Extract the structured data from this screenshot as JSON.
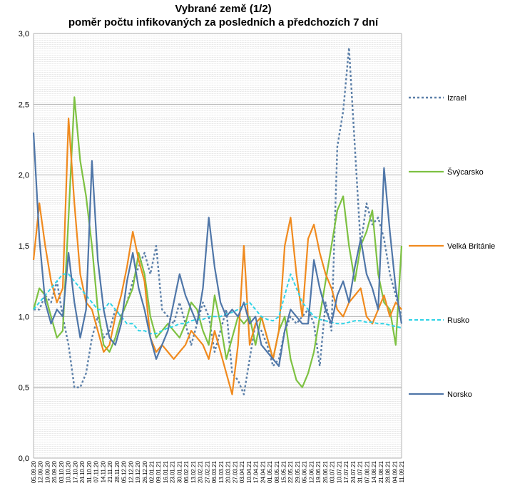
{
  "chart_data": {
    "type": "line",
    "title": "Vybrané země (1/2)",
    "subtitle": "poměr počtu infikovaných za posledních a předchozích 7 dní",
    "xlabel": "",
    "ylabel": "",
    "ylim": [
      0,
      3
    ],
    "y_ticks": [
      "0,0",
      "0,5",
      "1,0",
      "1,5",
      "2,0",
      "2,5",
      "3,0"
    ],
    "x_tick_labels": [
      "05.09.20",
      "12.09.20",
      "19.09.20",
      "26.09.20",
      "03.10.20",
      "10.10.20",
      "17.10.20",
      "24.10.20",
      "31.10.20",
      "07.11.20",
      "14.11.20",
      "21.11.20",
      "28.11.20",
      "05.12.20",
      "12.12.20",
      "19.12.20",
      "26.12.20",
      "02.01.21",
      "09.01.21",
      "16.01.21",
      "23.01.21",
      "30.01.21",
      "06.02.21",
      "13.02.21",
      "20.02.21",
      "27.02.21",
      "06.03.21",
      "13.03.21",
      "20.03.21",
      "27.03.21",
      "03.04.21",
      "10.04.21",
      "17.04.21",
      "24.04.21",
      "01.05.21",
      "08.05.21",
      "15.05.21",
      "22.05.21",
      "29.05.21",
      "05.06.21",
      "12.06.21",
      "19.06.21",
      "26.06.21",
      "03.07.21",
      "10.07.21",
      "17.07.21",
      "24.07.21",
      "31.07.21",
      "07.08.21",
      "14.08.21",
      "21.08.21",
      "28.08.21",
      "04.09.21",
      "11.09.21"
    ],
    "grid": true,
    "legend_position": "right",
    "series": [
      {
        "name": "Izrael",
        "color": "#5b7fa8",
        "dash": "dotted",
        "values": [
          1.05,
          1.05,
          1.15,
          1.1,
          1.25,
          1.0,
          0.8,
          0.5,
          0.5,
          0.6,
          0.85,
          1.0,
          0.85,
          0.9,
          1.05,
          1.0,
          1.1,
          1.25,
          1.35,
          1.45,
          1.3,
          1.5,
          1.05,
          1.0,
          0.95,
          1.1,
          0.95,
          0.8,
          0.95,
          1.1,
          1.0,
          0.75,
          0.9,
          1.05,
          0.6,
          0.55,
          0.45,
          0.7,
          0.95,
          0.9,
          0.8,
          0.65,
          0.7,
          0.9,
          1.0,
          0.95,
          1.0,
          1.05,
          0.95,
          0.65,
          1.1,
          0.9,
          2.2,
          2.45,
          2.9,
          2.2,
          1.5,
          1.8,
          1.65,
          1.7,
          1.55,
          1.3,
          1.15,
          1.0
        ]
      },
      {
        "name": "Švýcarsko",
        "color": "#7dc142",
        "dash": "solid",
        "values": [
          1.05,
          1.2,
          1.15,
          1.0,
          0.85,
          0.9,
          1.7,
          2.55,
          2.1,
          1.85,
          1.5,
          1.05,
          0.8,
          0.75,
          0.85,
          1.0,
          1.1,
          1.2,
          1.45,
          1.3,
          1.0,
          0.85,
          0.9,
          0.95,
          0.9,
          0.85,
          0.95,
          1.1,
          1.05,
          0.9,
          0.8,
          1.15,
          0.95,
          0.7,
          0.85,
          1.0,
          0.95,
          1.0,
          0.8,
          1.0,
          0.85,
          0.7,
          0.9,
          1.0,
          0.7,
          0.55,
          0.5,
          0.6,
          0.75,
          1.0,
          1.25,
          1.5,
          1.75,
          1.85,
          1.5,
          1.25,
          1.5,
          1.6,
          1.75,
          1.3,
          1.1,
          1.05,
          0.8,
          1.5
        ]
      },
      {
        "name": "Velká Británie",
        "color": "#f08a1e",
        "dash": "solid",
        "values": [
          1.4,
          1.8,
          1.5,
          1.25,
          1.1,
          1.2,
          2.4,
          1.8,
          1.3,
          1.1,
          1.05,
          0.9,
          0.75,
          0.8,
          1.0,
          1.15,
          1.35,
          1.6,
          1.4,
          1.25,
          0.85,
          0.75,
          0.8,
          0.75,
          0.7,
          0.75,
          0.8,
          0.9,
          0.85,
          0.8,
          0.7,
          0.9,
          0.75,
          0.6,
          0.45,
          0.8,
          1.5,
          0.8,
          0.95,
          1.0,
          0.85,
          0.7,
          0.9,
          1.5,
          1.7,
          1.3,
          1.0,
          1.55,
          1.65,
          1.45,
          1.3,
          1.2,
          1.05,
          1.0,
          1.1,
          1.15,
          1.2,
          1.0,
          0.95,
          1.05,
          1.15,
          1.0,
          1.1,
          1.05
        ]
      },
      {
        "name": "Rusko",
        "color": "#2ed3e6",
        "dash": "dashed",
        "values": [
          1.05,
          1.1,
          1.15,
          1.2,
          1.25,
          1.3,
          1.3,
          1.25,
          1.2,
          1.15,
          1.1,
          1.05,
          1.05,
          1.1,
          1.05,
          1.0,
          0.95,
          0.95,
          0.9,
          0.9,
          0.88,
          0.88,
          0.9,
          0.92,
          0.93,
          0.95,
          0.95,
          0.97,
          0.98,
          0.98,
          1.0,
          1.0,
          1.0,
          1.02,
          1.03,
          1.05,
          1.08,
          1.1,
          1.05,
          1.0,
          0.98,
          0.97,
          1.0,
          1.15,
          1.3,
          1.2,
          1.1,
          1.05,
          1.0,
          0.98,
          0.97,
          0.96,
          0.95,
          0.95,
          0.96,
          0.97,
          0.97,
          0.96,
          0.96,
          0.95,
          0.95,
          0.94,
          0.93,
          0.92
        ]
      },
      {
        "name": "Norsko",
        "color": "#4f76a8",
        "dash": "solid",
        "values": [
          2.3,
          1.55,
          1.1,
          0.95,
          1.05,
          1.0,
          1.45,
          1.1,
          0.85,
          1.05,
          2.1,
          1.4,
          1.05,
          0.85,
          0.8,
          0.95,
          1.25,
          1.45,
          1.2,
          1.05,
          0.85,
          0.7,
          0.8,
          0.9,
          1.1,
          1.3,
          1.15,
          1.05,
          0.95,
          1.2,
          1.7,
          1.35,
          1.1,
          1.0,
          1.05,
          1.0,
          1.1,
          0.95,
          1.0,
          0.8,
          0.75,
          0.7,
          0.65,
          0.9,
          1.05,
          1.0,
          0.95,
          0.95,
          1.4,
          1.2,
          1.05,
          0.95,
          1.15,
          1.25,
          1.1,
          1.35,
          1.55,
          1.3,
          1.2,
          1.05,
          2.05,
          1.6,
          1.2,
          0.95
        ]
      }
    ]
  }
}
